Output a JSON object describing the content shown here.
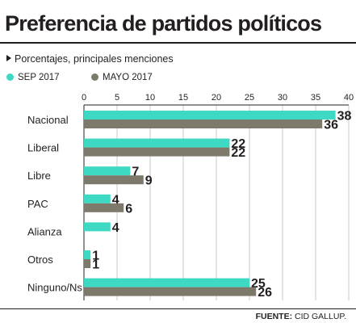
{
  "title": "Preferencia de partidos políticos",
  "subtitle": "Porcentajes, principales menciones",
  "source": {
    "label": "FUENTE:",
    "text": "CID GALLUP."
  },
  "chart_data": {
    "type": "bar",
    "orientation": "horizontal",
    "categories": [
      "Nacional",
      "Liberal",
      "Libre",
      "PAC",
      "Alianza",
      "Otros",
      "Ninguno/Ns"
    ],
    "series": [
      {
        "name": "SEP 2017",
        "color": "#3dd9c2",
        "values": [
          38,
          22,
          7,
          4,
          4,
          1,
          25
        ]
      },
      {
        "name": "MAYO 2017",
        "color": "#7d7a6b",
        "values": [
          36,
          22,
          9,
          6,
          null,
          1,
          26
        ]
      }
    ],
    "xlim": [
      0,
      40
    ],
    "xticks": [
      0,
      5,
      10,
      15,
      20,
      25,
      30,
      35,
      40
    ],
    "grid": true,
    "legend_position": "top-left"
  }
}
